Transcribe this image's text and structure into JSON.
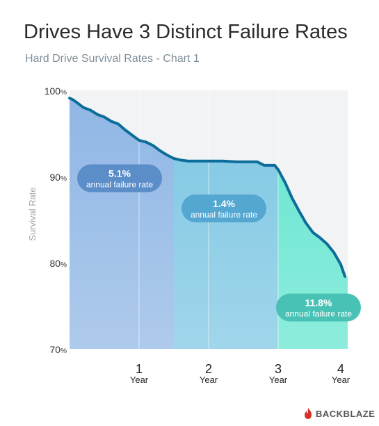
{
  "title": "Drives Have 3 Distinct Failure Rates",
  "subtitle": "Hard Drive Survival Rates - Chart 1",
  "brand": "BACKBLAZE",
  "chart_data": {
    "type": "area",
    "ylabel": "Survival Rate",
    "ylim": [
      70,
      100
    ],
    "xlim": [
      0,
      4
    ],
    "y_ticks": [
      {
        "value": 100,
        "num": "100",
        "unit": "%"
      },
      {
        "value": 90,
        "num": "90",
        "unit": "%"
      },
      {
        "value": 80,
        "num": "80",
        "unit": "%"
      },
      {
        "value": 70,
        "num": "70",
        "unit": "%"
      }
    ],
    "x_ticks": [
      {
        "value": 1,
        "num": "1",
        "unit": "Year"
      },
      {
        "value": 2,
        "num": "2",
        "unit": "Year"
      },
      {
        "value": 3,
        "num": "3",
        "unit": "Year"
      },
      {
        "value": 4,
        "num": "4",
        "unit": "Year"
      }
    ],
    "x_gridlines": [
      1,
      2,
      3
    ],
    "series": [
      {
        "x": [
          0,
          0.05,
          0.12,
          0.2,
          0.3,
          0.4,
          0.5,
          0.6,
          0.7,
          0.8,
          0.9,
          1.0,
          1.1,
          1.2,
          1.3,
          1.4,
          1.5,
          1.6,
          1.7,
          1.8,
          2.0,
          2.2,
          2.4,
          2.6,
          2.7,
          2.8,
          2.9,
          2.95,
          3.0,
          3.1,
          3.2,
          3.3,
          3.4,
          3.5,
          3.6,
          3.7,
          3.8,
          3.9,
          3.96
        ],
        "y": [
          99.1,
          98.9,
          98.5,
          98.0,
          97.7,
          97.2,
          96.9,
          96.4,
          96.1,
          95.4,
          94.8,
          94.2,
          94.0,
          93.6,
          93.0,
          92.5,
          92.1,
          91.9,
          91.8,
          91.8,
          91.8,
          91.8,
          91.7,
          91.7,
          91.7,
          91.3,
          91.3,
          91.3,
          90.8,
          89.3,
          87.5,
          86.0,
          84.6,
          83.5,
          82.9,
          82.2,
          81.2,
          79.8,
          78.4
        ]
      }
    ],
    "regions": [
      {
        "x_start": 0,
        "x_end": 1.5,
        "color": "#8fb6e5"
      },
      {
        "x_start": 1.5,
        "x_end": 3.0,
        "color": "#7cc6e3"
      },
      {
        "x_start": 3.0,
        "x_end": 4.0,
        "color": "#62e5cf"
      }
    ],
    "annotations": [
      {
        "value": "5.1%",
        "text": "annual failure rate",
        "color": "#5b8dc9",
        "x": 0.72,
        "y": 89.8
      },
      {
        "value": "1.4%",
        "text": "annual failure rate",
        "color": "#54a7d1",
        "x": 2.22,
        "y": 86.3
      },
      {
        "value": "11.8%",
        "text": "annual failure rate",
        "color": "#48c2b5",
        "x": 3.58,
        "y": 74.8
      }
    ],
    "line_color": "#0d6d9a"
  }
}
